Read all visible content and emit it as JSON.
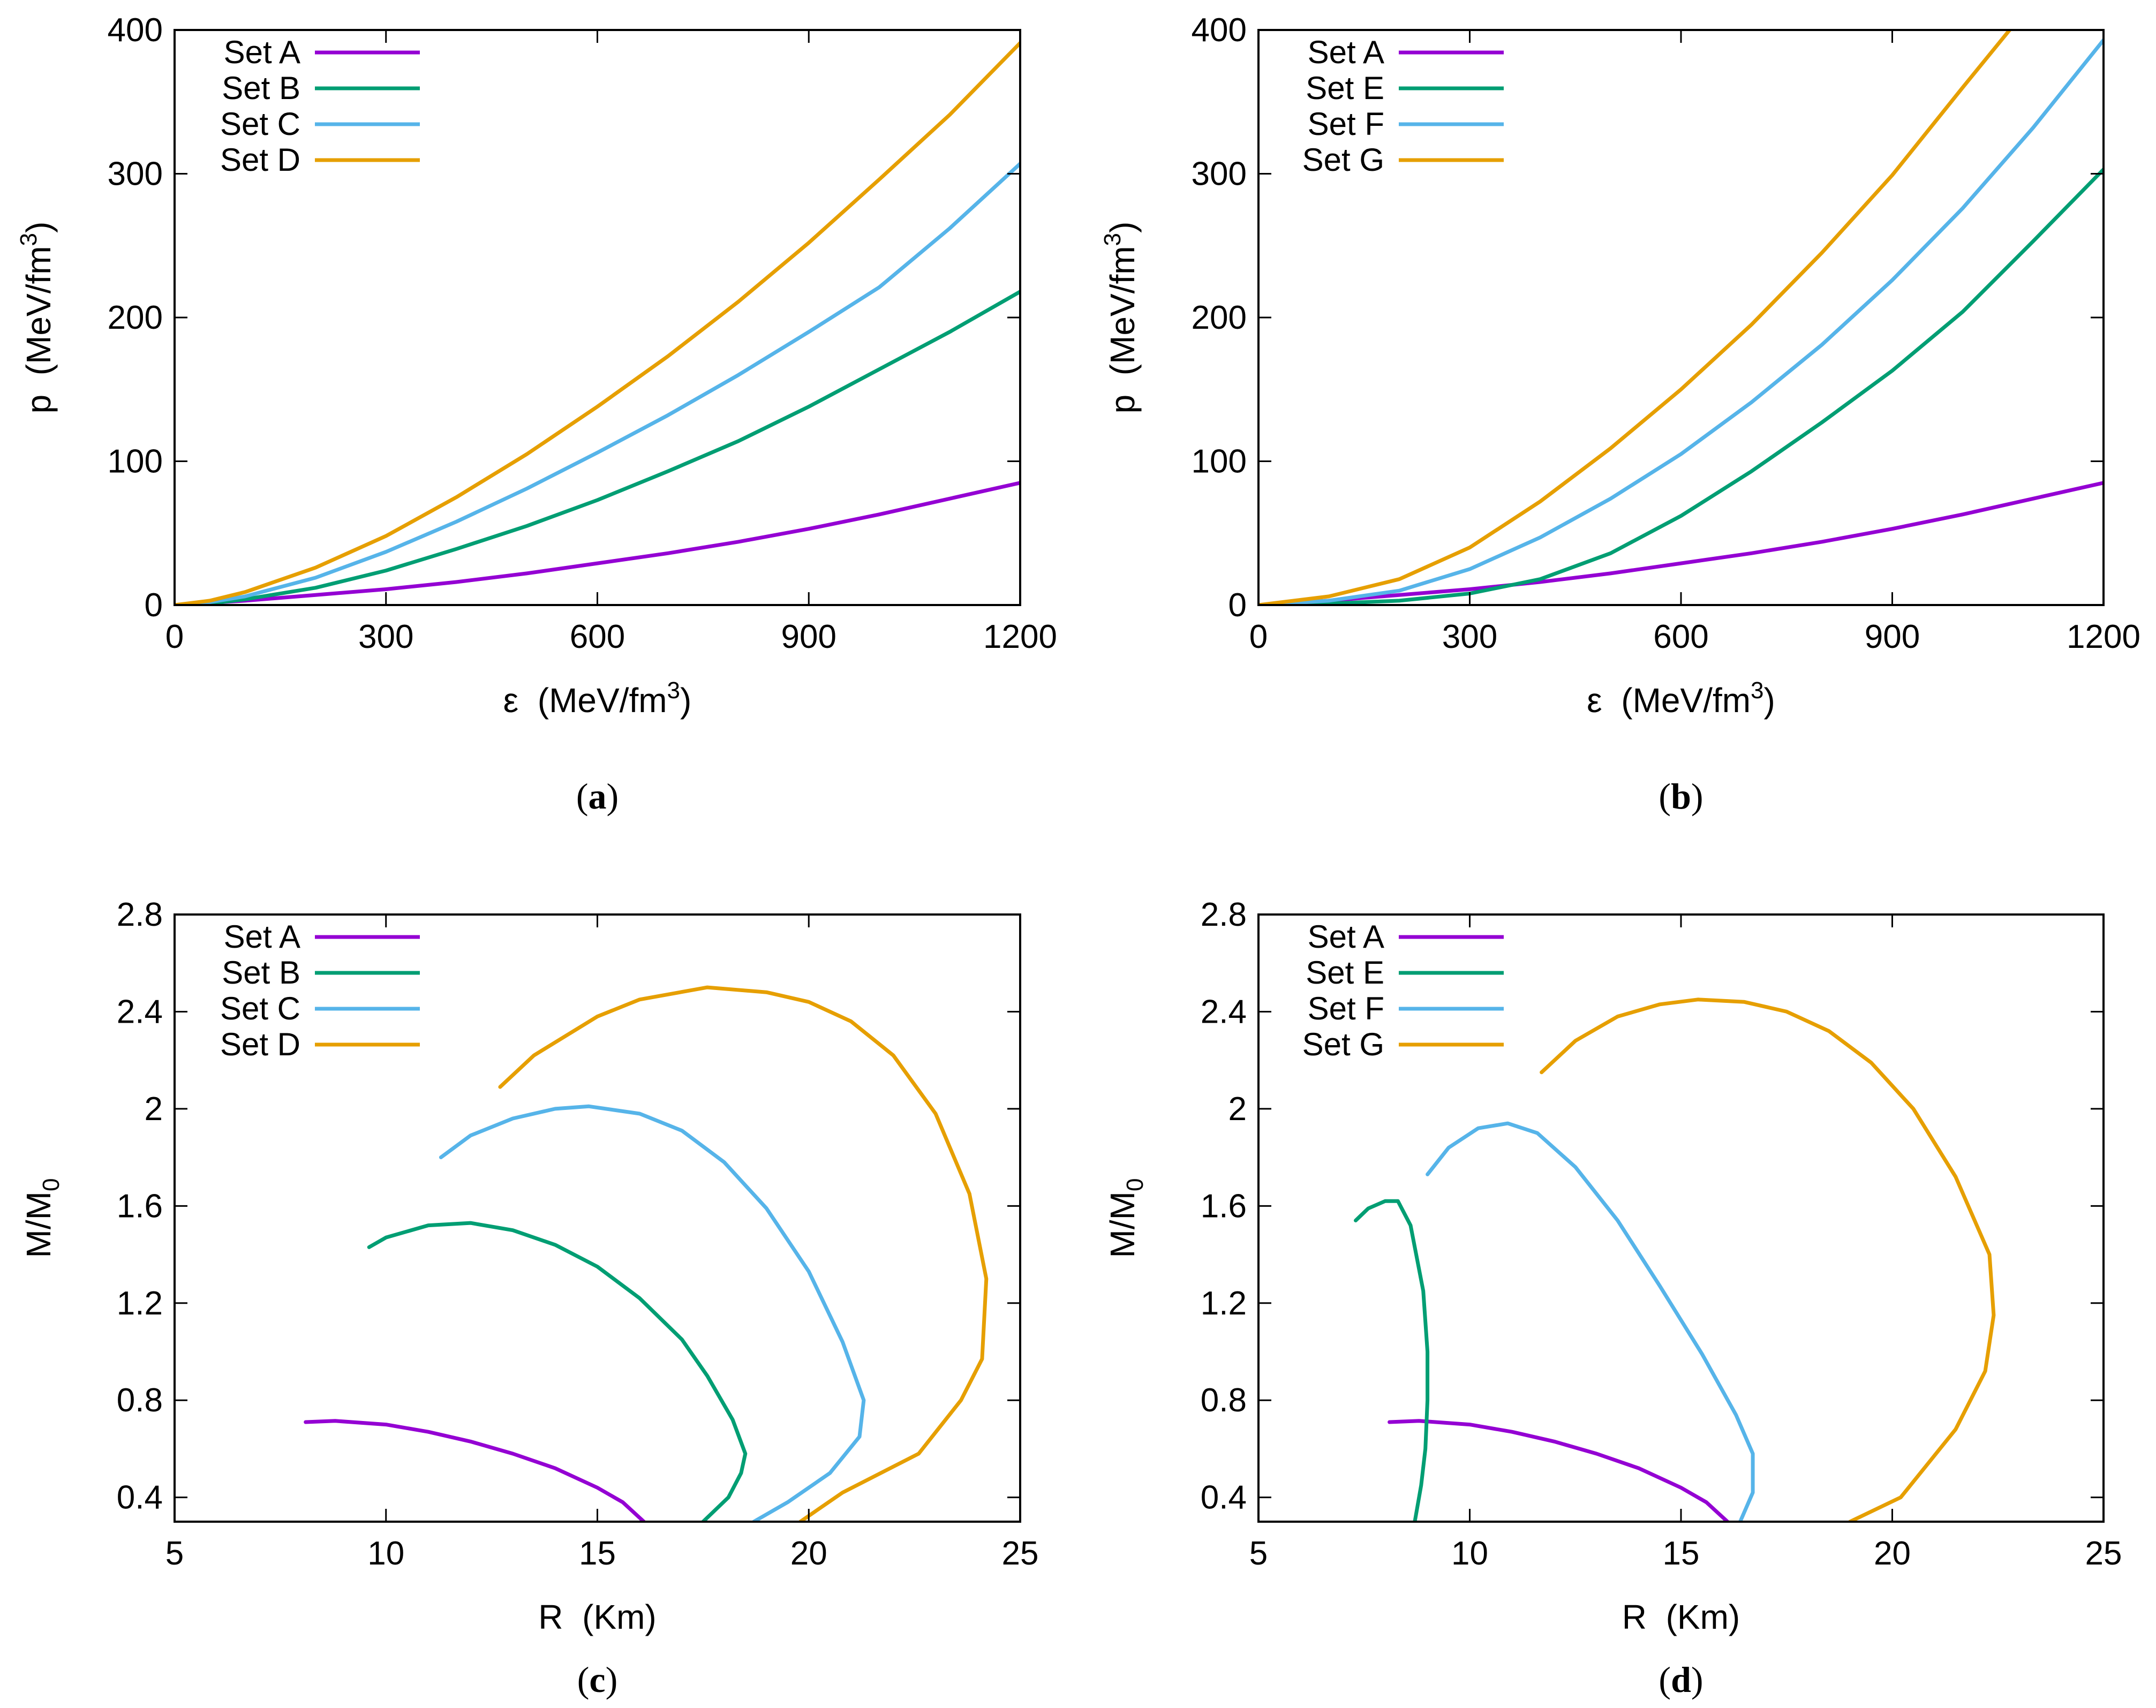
{
  "chart_data": [
    {
      "type": "line",
      "panel_label": "a",
      "caption": "(a)",
      "xlabel": "ε (MeV/fm3)",
      "xlabel_parts": [
        "ε",
        "(MeV/fm",
        "3",
        ")"
      ],
      "ylabel": "p (MeV/fm3)",
      "ylabel_parts": [
        "p",
        "(MeV/fm",
        "3",
        ")"
      ],
      "xlim": [
        0,
        1200
      ],
      "ylim": [
        0,
        400
      ],
      "xticks": [
        "0",
        "300",
        "600",
        "900",
        "1200"
      ],
      "xtick_values": [
        0,
        300,
        600,
        900,
        1200
      ],
      "yticks": [
        "0",
        "100",
        "200",
        "300",
        "400"
      ],
      "ytick_values": [
        0,
        100,
        200,
        300,
        400
      ],
      "legend_position": "top-left",
      "series": [
        {
          "name": "Set A",
          "color": "#9400d3",
          "x": [
            0,
            100,
            200,
            300,
            400,
            500,
            600,
            700,
            800,
            900,
            1000,
            1100,
            1200
          ],
          "y": [
            0,
            3,
            7,
            11,
            16,
            22,
            29,
            36,
            44,
            53,
            63,
            74,
            85
          ]
        },
        {
          "name": "Set B",
          "color": "#009e73",
          "x": [
            0,
            50,
            100,
            200,
            300,
            400,
            500,
            600,
            700,
            800,
            900,
            1000,
            1100,
            1200
          ],
          "y": [
            0,
            1,
            4,
            12,
            24,
            39,
            55,
            73,
            93,
            114,
            138,
            164,
            190,
            218
          ]
        },
        {
          "name": "Set C",
          "color": "#56b4e9",
          "x": [
            0,
            50,
            100,
            200,
            300,
            400,
            500,
            600,
            700,
            800,
            900,
            1000,
            1100,
            1200
          ],
          "y": [
            0,
            2,
            6,
            19,
            37,
            58,
            81,
            106,
            132,
            160,
            190,
            221,
            262,
            307
          ]
        },
        {
          "name": "Set D",
          "color": "#e69f00",
          "x": [
            0,
            50,
            100,
            200,
            300,
            400,
            500,
            600,
            700,
            800,
            900,
            1000,
            1100,
            1200
          ],
          "y": [
            0,
            3,
            9,
            26,
            48,
            75,
            105,
            138,
            173,
            211,
            252,
            296,
            341,
            391
          ]
        }
      ]
    },
    {
      "type": "line",
      "panel_label": "b",
      "caption": "(b)",
      "xlabel": "ε (MeV/fm3)",
      "xlabel_parts": [
        "ε",
        "(MeV/fm",
        "3",
        ")"
      ],
      "ylabel": "p (MeV/fm3)",
      "ylabel_parts": [
        "p",
        "(MeV/fm",
        "3",
        ")"
      ],
      "xlim": [
        0,
        1200
      ],
      "ylim": [
        0,
        400
      ],
      "xticks": [
        "0",
        "300",
        "600",
        "900",
        "1200"
      ],
      "xtick_values": [
        0,
        300,
        600,
        900,
        1200
      ],
      "yticks": [
        "0",
        "100",
        "200",
        "300",
        "400"
      ],
      "ytick_values": [
        0,
        100,
        200,
        300,
        400
      ],
      "legend_position": "top-left",
      "series": [
        {
          "name": "Set A",
          "color": "#9400d3",
          "x": [
            0,
            100,
            200,
            300,
            400,
            500,
            600,
            700,
            800,
            900,
            1000,
            1100,
            1200
          ],
          "y": [
            0,
            3,
            7,
            11,
            16,
            22,
            29,
            36,
            44,
            53,
            63,
            74,
            85
          ]
        },
        {
          "name": "Set E",
          "color": "#009e73",
          "x": [
            0,
            100,
            200,
            300,
            400,
            500,
            600,
            700,
            800,
            900,
            1000,
            1100,
            1200
          ],
          "y": [
            0,
            1,
            3,
            8,
            18,
            36,
            62,
            93,
            127,
            163,
            204,
            253,
            303
          ]
        },
        {
          "name": "Set F",
          "color": "#56b4e9",
          "x": [
            0,
            100,
            200,
            300,
            400,
            500,
            600,
            700,
            800,
            900,
            1000,
            1100,
            1200
          ],
          "y": [
            0,
            3,
            10,
            25,
            47,
            74,
            105,
            141,
            181,
            226,
            276,
            332,
            393
          ]
        },
        {
          "name": "Set G",
          "color": "#e69f00",
          "x": [
            0,
            100,
            200,
            300,
            400,
            500,
            600,
            700,
            800,
            900,
            1000,
            1070
          ],
          "y": [
            0,
            6,
            18,
            40,
            72,
            109,
            150,
            195,
            245,
            299,
            360,
            402
          ]
        }
      ]
    },
    {
      "type": "line",
      "panel_label": "c",
      "caption": "(c)",
      "xlabel": "R (Km)",
      "xlabel_parts": [
        "R",
        "(Km)"
      ],
      "ylabel": "M/M0",
      "ylabel_parts": [
        "M/M",
        "0"
      ],
      "xlim": [
        5,
        25
      ],
      "ylim": [
        0.3,
        2.8
      ],
      "xticks": [
        "5",
        "10",
        "15",
        "20",
        "25"
      ],
      "xtick_values": [
        5,
        10,
        15,
        20,
        25
      ],
      "yticks": [
        "0.4",
        "0.8",
        "1.2",
        "1.6",
        "2",
        "2.4",
        "2.8"
      ],
      "ytick_values": [
        0.4,
        0.8,
        1.2,
        1.6,
        2.0,
        2.4,
        2.8
      ],
      "legend_position": "top-left",
      "series": [
        {
          "name": "Set A",
          "color": "#9400d3",
          "x": [
            8.1,
            8.8,
            10,
            11,
            12,
            13,
            14,
            15,
            15.6,
            16.1
          ],
          "y": [
            0.71,
            0.715,
            0.7,
            0.67,
            0.63,
            0.58,
            0.52,
            0.44,
            0.38,
            0.3
          ]
        },
        {
          "name": "Set B",
          "color": "#009e73",
          "x": [
            9.6,
            10,
            11,
            12,
            13,
            14,
            15,
            16,
            17,
            17.6,
            18.2,
            18.5,
            18.4,
            18.1,
            17.5
          ],
          "y": [
            1.43,
            1.47,
            1.52,
            1.53,
            1.5,
            1.44,
            1.35,
            1.22,
            1.05,
            0.9,
            0.72,
            0.58,
            0.5,
            0.4,
            0.3
          ]
        },
        {
          "name": "Set C",
          "color": "#56b4e9",
          "x": [
            11.3,
            12,
            13,
            14,
            14.8,
            16,
            17,
            18,
            19,
            20,
            20.8,
            21.3,
            21.2,
            20.5,
            19.5,
            18.7
          ],
          "y": [
            1.8,
            1.89,
            1.96,
            2.0,
            2.01,
            1.98,
            1.91,
            1.78,
            1.59,
            1.33,
            1.04,
            0.8,
            0.65,
            0.5,
            0.38,
            0.3
          ]
        },
        {
          "name": "Set D",
          "color": "#e69f00",
          "x": [
            12.7,
            13.5,
            15,
            16,
            17.6,
            19,
            20,
            21,
            22,
            23,
            23.8,
            24.2,
            24.1,
            23.6,
            22.6,
            20.8,
            19.8
          ],
          "y": [
            2.09,
            2.22,
            2.38,
            2.45,
            2.5,
            2.48,
            2.44,
            2.36,
            2.22,
            1.98,
            1.65,
            1.3,
            0.97,
            0.8,
            0.58,
            0.42,
            0.3
          ]
        }
      ]
    },
    {
      "type": "line",
      "panel_label": "d",
      "caption": "(d)",
      "xlabel": "R (Km)",
      "xlabel_parts": [
        "R",
        "(Km)"
      ],
      "ylabel": "M/M0",
      "ylabel_parts": [
        "M/M",
        "0"
      ],
      "xlim": [
        5,
        25
      ],
      "ylim": [
        0.3,
        2.8
      ],
      "xticks": [
        "5",
        "10",
        "15",
        "20",
        "25"
      ],
      "xtick_values": [
        5,
        10,
        15,
        20,
        25
      ],
      "yticks": [
        "0.4",
        "0.8",
        "1.2",
        "1.6",
        "2",
        "2.4",
        "2.8"
      ],
      "ytick_values": [
        0.4,
        0.8,
        1.2,
        1.6,
        2.0,
        2.4,
        2.8
      ],
      "legend_position": "top-left",
      "series": [
        {
          "name": "Set A",
          "color": "#9400d3",
          "x": [
            8.1,
            8.8,
            10,
            11,
            12,
            13,
            14,
            15,
            15.6,
            16.1
          ],
          "y": [
            0.71,
            0.715,
            0.7,
            0.67,
            0.63,
            0.58,
            0.52,
            0.44,
            0.38,
            0.3
          ]
        },
        {
          "name": "Set E",
          "color": "#009e73",
          "x": [
            7.3,
            7.6,
            8.0,
            8.3,
            8.6,
            8.9,
            9.0,
            9.0,
            8.95,
            8.85,
            8.7
          ],
          "y": [
            1.54,
            1.59,
            1.62,
            1.62,
            1.52,
            1.25,
            1.0,
            0.8,
            0.6,
            0.45,
            0.3
          ]
        },
        {
          "name": "Set F",
          "color": "#56b4e9",
          "x": [
            9.0,
            9.5,
            10.2,
            10.9,
            11.6,
            12.5,
            13.5,
            14.5,
            15.5,
            16.3,
            16.7,
            16.7,
            16.4
          ],
          "y": [
            1.73,
            1.84,
            1.92,
            1.94,
            1.9,
            1.76,
            1.54,
            1.27,
            0.99,
            0.74,
            0.58,
            0.42,
            0.3
          ]
        },
        {
          "name": "Set G",
          "color": "#e69f00",
          "x": [
            11.7,
            12.5,
            13.5,
            14.5,
            15.4,
            16.5,
            17.5,
            18.5,
            19.5,
            20.5,
            21.5,
            22.3,
            22.4,
            22.2,
            21.5,
            20.2,
            19.0
          ],
          "y": [
            2.15,
            2.28,
            2.38,
            2.43,
            2.45,
            2.44,
            2.4,
            2.32,
            2.19,
            2.0,
            1.72,
            1.4,
            1.15,
            0.92,
            0.68,
            0.4,
            0.3
          ]
        }
      ]
    }
  ]
}
